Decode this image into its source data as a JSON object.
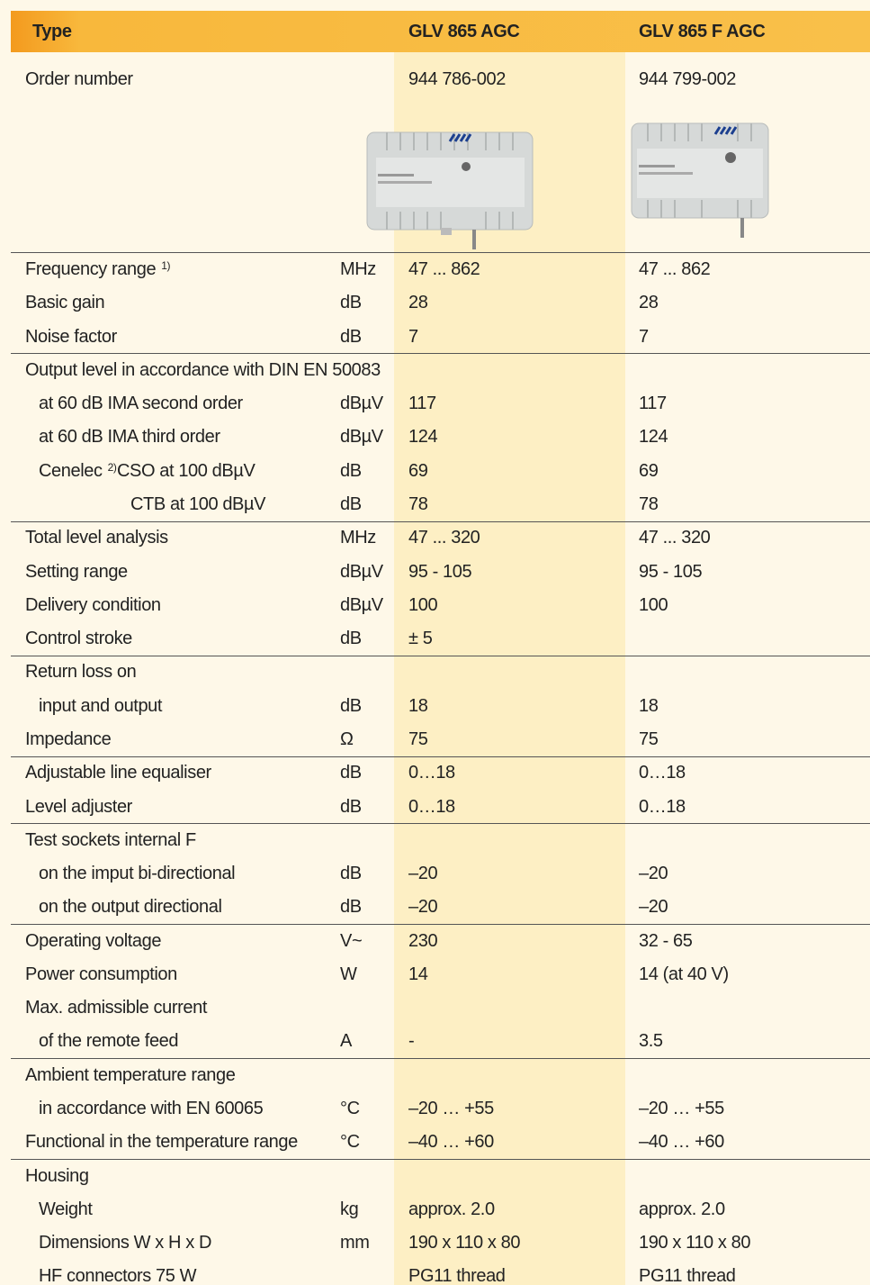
{
  "header": {
    "columns": [
      "Type",
      "GLV 865 AGC",
      "GLV 865 F AGC"
    ]
  },
  "order": {
    "label": "Order number",
    "values": [
      "944 786-002",
      "944 799-002"
    ]
  },
  "groups": [
    [
      {
        "label": "Frequency range",
        "note": "1)",
        "unit": "MHz",
        "values": [
          "47 ... 862",
          "47 ... 862"
        ]
      },
      {
        "label": "Basic gain",
        "unit": "dB",
        "values": [
          "28",
          "28"
        ]
      },
      {
        "label": "Noise factor",
        "unit": "dB",
        "values": [
          "7",
          "7"
        ]
      }
    ],
    [
      {
        "label": "Output level in accordance with DIN EN 50083"
      },
      {
        "label": "at 60 dB IMA second order",
        "unit": "dBµV",
        "values": [
          "117",
          "117"
        ]
      },
      {
        "label": "at 60 dB IMA third order",
        "unit": "dBµV",
        "values": [
          "124",
          "124"
        ]
      },
      {
        "label": "Cenelec",
        "note": "2)",
        "sublabel": "CSO at 100 dBµV",
        "unit": "dB",
        "values": [
          "69",
          "69"
        ]
      },
      {
        "label": "CTB at 100 dBµV",
        "unit": "dB",
        "values": [
          "78",
          "78"
        ]
      }
    ],
    [
      {
        "label": "Total level analysis",
        "unit": "MHz",
        "values": [
          "47 ... 320",
          "47 ... 320"
        ]
      },
      {
        "label": "Setting range",
        "unit": "dBµV",
        "values": [
          "95 - 105",
          "95 - 105"
        ]
      },
      {
        "label": "Delivery condition",
        "unit": "dBµV",
        "values": [
          "100",
          "100"
        ]
      },
      {
        "label": "Control stroke",
        "unit": "dB",
        "values": [
          "± 5",
          null
        ]
      }
    ],
    [
      {
        "label": "Return loss on"
      },
      {
        "label": "input and output",
        "unit": "dB",
        "values": [
          "18",
          "18"
        ]
      },
      {
        "label": "Impedance",
        "unit": "Ω",
        "values": [
          "75",
          "75"
        ]
      }
    ],
    [
      {
        "label": "Adjustable line equaliser",
        "unit": "dB",
        "values": [
          "0…18",
          "0…18"
        ]
      },
      {
        "label": "Level adjuster",
        "unit": "dB",
        "values": [
          "0…18",
          "0…18"
        ]
      }
    ],
    [
      {
        "label": "Test sockets internal F"
      },
      {
        "label": "on the imput bi-directional",
        "unit": "dB",
        "values": [
          "–20",
          "–20"
        ]
      },
      {
        "label": "on the output directional",
        "unit": "dB",
        "values": [
          "–20",
          "–20"
        ]
      }
    ],
    [
      {
        "label": "Operating voltage",
        "unit": "V~",
        "values": [
          "230",
          "32 - 65"
        ]
      },
      {
        "label": "Power consumption",
        "unit": "W",
        "values": [
          "14",
          "14 (at 40 V)"
        ]
      },
      {
        "label": "Max. admissible current"
      },
      {
        "label": "of the remote feed",
        "unit": "A",
        "values": [
          "-",
          "3.5"
        ]
      }
    ],
    [
      {
        "label": "Ambient temperature range"
      },
      {
        "label": "in accordance with EN 60065",
        "unit": "°C",
        "values": [
          "–20 … +55",
          "–20 … +55"
        ]
      },
      {
        "label": "Functional in the temperature range",
        "unit": "°C",
        "values": [
          "–40 … +60",
          "–40 … +60"
        ]
      }
    ],
    [
      {
        "label": "Housing"
      },
      {
        "label": "Weight",
        "unit": "kg",
        "values": [
          "approx. 2.0",
          "approx. 2.0"
        ]
      },
      {
        "label": "Dimensions W x H x D",
        "unit": "mm",
        "values": [
          "190 x 110 x 80",
          "190 x 110 x 80"
        ]
      },
      {
        "label": "HF connectors 75 W",
        "values": [
          "PG11 thread",
          "PG11 thread"
        ]
      }
    ]
  ]
}
